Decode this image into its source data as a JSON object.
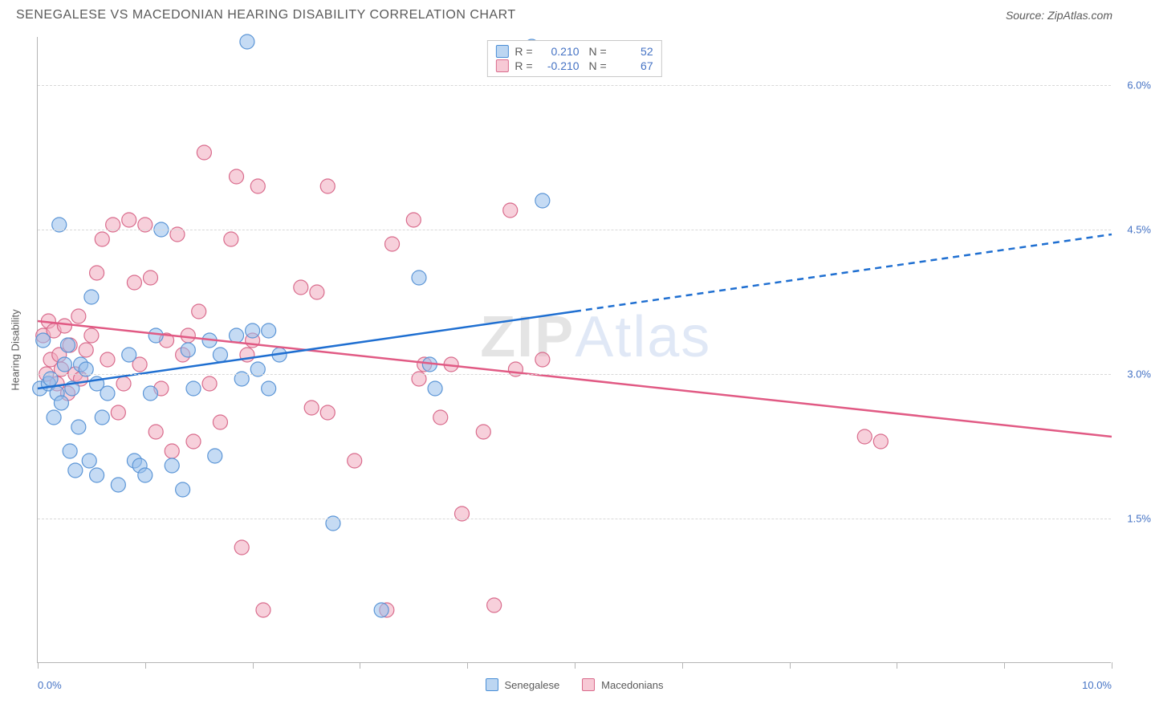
{
  "header": {
    "title": "SENEGALESE VS MACEDONIAN HEARING DISABILITY CORRELATION CHART",
    "source": "Source: ZipAtlas.com"
  },
  "chart": {
    "type": "scatter",
    "y_axis_title": "Hearing Disability",
    "background_color": "#ffffff",
    "grid_color": "#d8d8d8",
    "axis_color": "#b5b5b5",
    "tick_label_color": "#4472c4",
    "xlim": [
      0,
      10
    ],
    "ylim": [
      0,
      6.5
    ],
    "x_ticks": [
      0,
      1,
      2,
      3,
      4,
      5,
      6,
      7,
      8,
      9,
      10
    ],
    "x_tick_labels": {
      "0": "0.0%",
      "10": "10.0%"
    },
    "y_gridlines": [
      1.5,
      3.0,
      4.5,
      6.0
    ],
    "y_tick_labels": {
      "1.5": "1.5%",
      "3.0": "3.0%",
      "4.5": "4.5%",
      "6.0": "6.0%"
    },
    "watermark": {
      "z": "ZIP",
      "rest": "Atlas"
    },
    "legend_bottom": [
      {
        "label": "Senegalese",
        "swatch_fill": "#bcd6f2",
        "swatch_border": "#4a8ed6"
      },
      {
        "label": "Macedonians",
        "swatch_fill": "#f7c9d5",
        "swatch_border": "#d96b8c"
      }
    ],
    "correlation_box": [
      {
        "swatch_fill": "#bcd6f2",
        "swatch_border": "#4a8ed6",
        "R": "0.210",
        "N": "52"
      },
      {
        "swatch_fill": "#f7c9d5",
        "swatch_border": "#d96b8c",
        "R": "-0.210",
        "N": "67"
      }
    ],
    "series": {
      "senegalese": {
        "marker_fill": "rgba(150,190,235,0.55)",
        "marker_stroke": "#5b95d6",
        "marker_radius": 9,
        "line_color": "#1f6fd1",
        "line_width": 2.5,
        "trend": {
          "x1": 0,
          "y1": 2.85,
          "x2": 5.0,
          "y2": 3.65,
          "extend_x": 10.0,
          "extend_y": 4.45
        },
        "points": [
          [
            0.02,
            2.85
          ],
          [
            0.05,
            3.35
          ],
          [
            0.1,
            2.9
          ],
          [
            0.12,
            2.95
          ],
          [
            0.15,
            2.55
          ],
          [
            0.18,
            2.8
          ],
          [
            0.2,
            4.55
          ],
          [
            0.22,
            2.7
          ],
          [
            0.25,
            3.1
          ],
          [
            0.28,
            3.3
          ],
          [
            0.3,
            2.2
          ],
          [
            0.32,
            2.85
          ],
          [
            0.35,
            2.0
          ],
          [
            0.38,
            2.45
          ],
          [
            0.4,
            3.1
          ],
          [
            0.45,
            3.05
          ],
          [
            0.48,
            2.1
          ],
          [
            0.5,
            3.8
          ],
          [
            0.55,
            2.9
          ],
          [
            0.55,
            1.95
          ],
          [
            0.6,
            2.55
          ],
          [
            0.65,
            2.8
          ],
          [
            0.75,
            1.85
          ],
          [
            0.85,
            3.2
          ],
          [
            0.9,
            2.1
          ],
          [
            0.95,
            2.05
          ],
          [
            1.0,
            1.95
          ],
          [
            1.05,
            2.8
          ],
          [
            1.1,
            3.4
          ],
          [
            1.15,
            4.5
          ],
          [
            1.25,
            2.05
          ],
          [
            1.35,
            1.8
          ],
          [
            1.4,
            3.25
          ],
          [
            1.45,
            2.85
          ],
          [
            1.6,
            3.35
          ],
          [
            1.65,
            2.15
          ],
          [
            1.7,
            3.2
          ],
          [
            1.85,
            3.4
          ],
          [
            1.9,
            2.95
          ],
          [
            1.95,
            6.45
          ],
          [
            2.0,
            3.45
          ],
          [
            2.05,
            3.05
          ],
          [
            2.15,
            3.45
          ],
          [
            2.15,
            2.85
          ],
          [
            2.25,
            3.2
          ],
          [
            2.75,
            1.45
          ],
          [
            3.2,
            0.55
          ],
          [
            3.55,
            4.0
          ],
          [
            3.65,
            3.1
          ],
          [
            3.7,
            2.85
          ],
          [
            4.6,
            6.4
          ],
          [
            4.7,
            4.8
          ]
        ]
      },
      "macedonians": {
        "marker_fill": "rgba(240,170,190,0.55)",
        "marker_stroke": "#d96b8c",
        "marker_radius": 9,
        "line_color": "#e15a84",
        "line_width": 2.5,
        "trend": {
          "x1": 0,
          "y1": 3.55,
          "x2": 10.0,
          "y2": 2.35
        },
        "points": [
          [
            0.05,
            3.4
          ],
          [
            0.08,
            3.0
          ],
          [
            0.1,
            3.55
          ],
          [
            0.12,
            3.15
          ],
          [
            0.15,
            3.45
          ],
          [
            0.18,
            2.9
          ],
          [
            0.2,
            3.2
          ],
          [
            0.22,
            3.05
          ],
          [
            0.25,
            3.5
          ],
          [
            0.28,
            2.8
          ],
          [
            0.3,
            3.3
          ],
          [
            0.35,
            3.0
          ],
          [
            0.38,
            3.6
          ],
          [
            0.4,
            2.95
          ],
          [
            0.45,
            3.25
          ],
          [
            0.5,
            3.4
          ],
          [
            0.55,
            4.05
          ],
          [
            0.6,
            4.4
          ],
          [
            0.65,
            3.15
          ],
          [
            0.7,
            4.55
          ],
          [
            0.75,
            2.6
          ],
          [
            0.8,
            2.9
          ],
          [
            0.85,
            4.6
          ],
          [
            0.9,
            3.95
          ],
          [
            0.95,
            3.1
          ],
          [
            1.0,
            4.55
          ],
          [
            1.05,
            4.0
          ],
          [
            1.1,
            2.4
          ],
          [
            1.15,
            2.85
          ],
          [
            1.2,
            3.35
          ],
          [
            1.25,
            2.2
          ],
          [
            1.3,
            4.45
          ],
          [
            1.35,
            3.2
          ],
          [
            1.4,
            3.4
          ],
          [
            1.45,
            2.3
          ],
          [
            1.5,
            3.65
          ],
          [
            1.55,
            5.3
          ],
          [
            1.6,
            2.9
          ],
          [
            1.7,
            2.5
          ],
          [
            1.8,
            4.4
          ],
          [
            1.85,
            5.05
          ],
          [
            1.9,
            1.2
          ],
          [
            1.95,
            3.2
          ],
          [
            2.0,
            3.35
          ],
          [
            2.05,
            4.95
          ],
          [
            2.1,
            0.55
          ],
          [
            2.45,
            3.9
          ],
          [
            2.55,
            2.65
          ],
          [
            2.6,
            3.85
          ],
          [
            2.7,
            4.95
          ],
          [
            2.7,
            2.6
          ],
          [
            2.95,
            2.1
          ],
          [
            3.25,
            0.55
          ],
          [
            3.3,
            4.35
          ],
          [
            3.5,
            4.6
          ],
          [
            3.55,
            2.95
          ],
          [
            3.6,
            3.1
          ],
          [
            3.75,
            2.55
          ],
          [
            3.85,
            3.1
          ],
          [
            3.95,
            1.55
          ],
          [
            4.15,
            2.4
          ],
          [
            4.25,
            0.6
          ],
          [
            4.4,
            4.7
          ],
          [
            4.45,
            3.05
          ],
          [
            4.7,
            3.15
          ],
          [
            7.7,
            2.35
          ],
          [
            7.85,
            2.3
          ]
        ]
      }
    }
  }
}
